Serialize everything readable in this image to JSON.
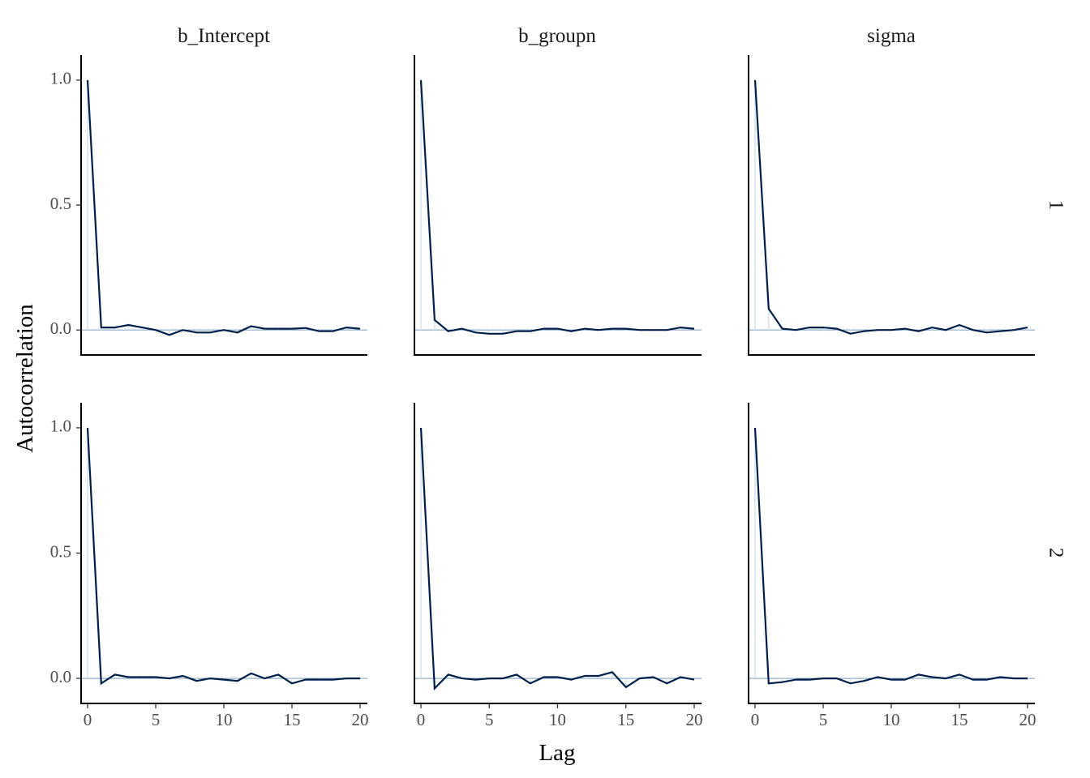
{
  "chart_data": {
    "type": "line",
    "xlabel": "Lag",
    "ylabel": "Autocorrelation",
    "xlim": [
      0,
      20
    ],
    "ylim": [
      -0.1,
      1.1
    ],
    "x_ticks": [
      "0",
      "5",
      "10",
      "15",
      "20"
    ],
    "y_ticks": [
      "0.0",
      "0.5",
      "1.0"
    ],
    "grid": false,
    "parameters": [
      "b_Intercept",
      "b_groupn",
      "sigma"
    ],
    "chains": [
      "1",
      "2"
    ],
    "colors": {
      "line": "#011f4b",
      "bar": "#d1e1ec",
      "zero_line": "#7a9cb8"
    },
    "lags": [
      0,
      1,
      2,
      3,
      4,
      5,
      6,
      7,
      8,
      9,
      10,
      11,
      12,
      13,
      14,
      15,
      16,
      17,
      18,
      19,
      20
    ],
    "panels": [
      {
        "parameter": "b_Intercept",
        "chain": "1",
        "values": [
          1.0,
          0.01,
          0.01,
          0.02,
          0.01,
          0.0,
          -0.02,
          0.0,
          -0.01,
          -0.01,
          0.0,
          -0.01,
          0.015,
          0.005,
          0.005,
          0.005,
          0.008,
          -0.005,
          -0.005,
          0.01,
          0.005
        ]
      },
      {
        "parameter": "b_groupn",
        "chain": "1",
        "values": [
          1.0,
          0.04,
          -0.005,
          0.005,
          -0.01,
          -0.015,
          -0.015,
          -0.005,
          -0.005,
          0.005,
          0.005,
          -0.005,
          0.005,
          0.0,
          0.005,
          0.005,
          0.0,
          0.0,
          0.0,
          0.01,
          0.005
        ]
      },
      {
        "parameter": "sigma",
        "chain": "1",
        "values": [
          1.0,
          0.085,
          0.005,
          0.0,
          0.01,
          0.01,
          0.005,
          -0.015,
          -0.005,
          0.0,
          0.0,
          0.005,
          -0.005,
          0.01,
          0.0,
          0.02,
          0.0,
          -0.01,
          -0.005,
          0.0,
          0.01
        ]
      },
      {
        "parameter": "b_Intercept",
        "chain": "2",
        "values": [
          1.0,
          -0.02,
          0.015,
          0.005,
          0.005,
          0.005,
          0.0,
          0.01,
          -0.01,
          0.0,
          -0.005,
          -0.01,
          0.02,
          0.0,
          0.015,
          -0.02,
          -0.005,
          -0.005,
          -0.005,
          0.0,
          0.0
        ]
      },
      {
        "parameter": "b_groupn",
        "chain": "2",
        "values": [
          1.0,
          -0.04,
          0.015,
          0.0,
          -0.005,
          0.0,
          0.0,
          0.015,
          -0.02,
          0.005,
          0.005,
          -0.005,
          0.01,
          0.01,
          0.025,
          -0.035,
          0.0,
          0.005,
          -0.02,
          0.005,
          -0.005
        ]
      },
      {
        "parameter": "sigma",
        "chain": "2",
        "values": [
          1.0,
          -0.02,
          -0.015,
          -0.005,
          -0.005,
          0.0,
          0.0,
          -0.02,
          -0.01,
          0.005,
          -0.005,
          -0.005,
          0.015,
          0.005,
          0.0,
          0.015,
          -0.005,
          -0.005,
          0.005,
          0.0,
          0.0
        ]
      }
    ]
  }
}
